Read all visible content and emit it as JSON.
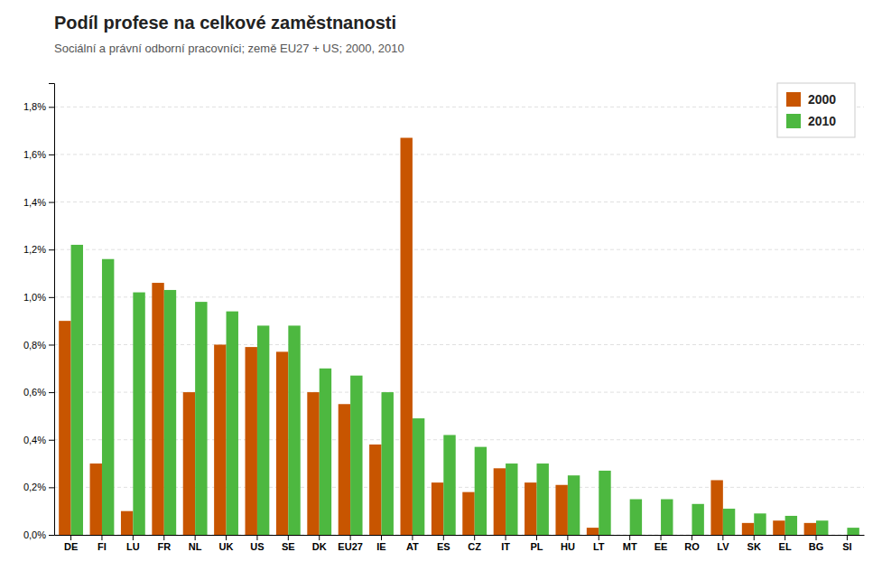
{
  "chart_data": {
    "type": "bar",
    "title": "Podíl profese na celkové zaměstnanosti",
    "subtitle": "Sociální a právní odborní pracovníci; země EU27 + US; 2000, 2010",
    "categories": [
      "DE",
      "FI",
      "LU",
      "FR",
      "NL",
      "UK",
      "US",
      "SE",
      "DK",
      "EU27",
      "IE",
      "AT",
      "ES",
      "CZ",
      "IT",
      "PL",
      "HU",
      "LT",
      "MT",
      "EE",
      "RO",
      "LV",
      "SK",
      "EL",
      "BG",
      "SI"
    ],
    "series": [
      {
        "name": "2000",
        "color": "#C85500",
        "values": [
          0.009,
          0.003,
          0.001,
          0.0106,
          0.006,
          0.008,
          0.0079,
          0.0077,
          0.006,
          0.0055,
          0.0038,
          0.0167,
          0.0022,
          0.0018,
          0.0028,
          0.0022,
          0.0021,
          0.0003,
          0.0,
          0.0,
          0.0,
          0.0023,
          0.0005,
          0.0006,
          0.0005,
          0.0
        ]
      },
      {
        "name": "2010",
        "color": "#4DB840",
        "values": [
          0.0122,
          0.0116,
          0.0102,
          0.0103,
          0.0098,
          0.0094,
          0.0088,
          0.0088,
          0.007,
          0.0067,
          0.006,
          0.0049,
          0.0042,
          0.0037,
          0.003,
          0.003,
          0.0025,
          0.0027,
          0.0015,
          0.0015,
          0.0013,
          0.0011,
          0.0009,
          0.0008,
          0.0006,
          0.0003
        ]
      }
    ],
    "ylim": [
      0,
      0.019
    ],
    "yticks": [
      {
        "value": 0.0,
        "label": "0,0%"
      },
      {
        "value": 0.002,
        "label": "0,2%"
      },
      {
        "value": 0.004,
        "label": "0,4%"
      },
      {
        "value": 0.006,
        "label": "0,6%"
      },
      {
        "value": 0.008,
        "label": "0,8%"
      },
      {
        "value": 0.01,
        "label": "1,0%"
      },
      {
        "value": 0.012,
        "label": "1,2%"
      },
      {
        "value": 0.014,
        "label": "1,4%"
      },
      {
        "value": 0.016,
        "label": "1,6%"
      },
      {
        "value": 0.018,
        "label": "1,8%"
      }
    ],
    "grid": true,
    "legend": "upper right"
  }
}
